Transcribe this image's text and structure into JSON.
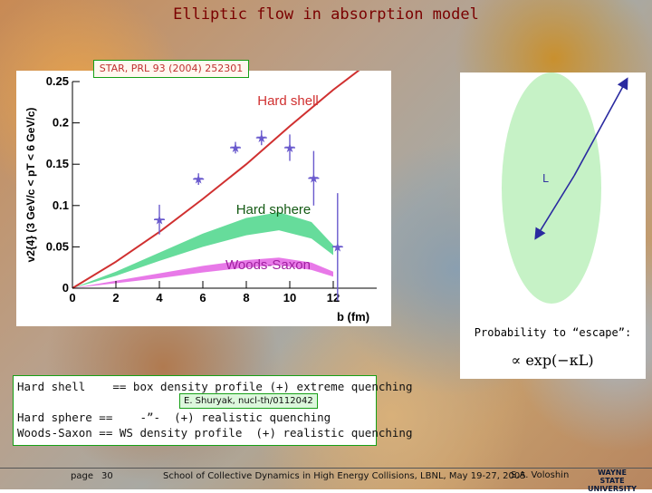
{
  "slide": {
    "title": "Elliptic flow in absorption model",
    "star_ref": "STAR, PRL 93 (2004) 252301"
  },
  "chart_data": {
    "type": "scatter",
    "xlabel": "b (fm)",
    "ylabel": "v2{4} (3 GeV/c < pT < 6 GeV/c)",
    "xlim": [
      0,
      14
    ],
    "ylim": [
      0,
      0.25
    ],
    "x_ticks": [
      "0",
      "2",
      "4",
      "6",
      "8",
      "10",
      "12"
    ],
    "y_ticks": [
      "0",
      "0.05",
      "0.1",
      "0.15",
      "0.2",
      "0.25"
    ],
    "grid": false,
    "points": [
      {
        "x": 4.0,
        "y": 0.083,
        "err": 0.018
      },
      {
        "x": 5.8,
        "y": 0.132,
        "err": 0.007
      },
      {
        "x": 7.5,
        "y": 0.17,
        "err": 0.007
      },
      {
        "x": 8.7,
        "y": 0.182,
        "err": 0.009
      },
      {
        "x": 10.0,
        "y": 0.17,
        "err": 0.016
      },
      {
        "x": 11.1,
        "y": 0.133,
        "err": 0.033
      },
      {
        "x": 12.2,
        "y": 0.05,
        "err": 0.065
      }
    ],
    "curves": [
      {
        "name": "Hard shell",
        "color": "#d03030",
        "kind": "line",
        "x": [
          0,
          2,
          4,
          6,
          8,
          10,
          12,
          13.5
        ],
        "y": [
          0,
          0.032,
          0.068,
          0.108,
          0.15,
          0.196,
          0.24,
          0.27
        ]
      },
      {
        "name": "Hard sphere",
        "color": "#33d07a",
        "kind": "band",
        "x": [
          0,
          2,
          4,
          6,
          8,
          9.5,
          11,
          12
        ],
        "y_low": [
          0,
          0.015,
          0.033,
          0.05,
          0.064,
          0.07,
          0.06,
          0.04
        ],
        "y_high": [
          0,
          0.02,
          0.043,
          0.066,
          0.085,
          0.092,
          0.08,
          0.052
        ]
      },
      {
        "name": "Woods-Saxon",
        "color": "#e04ce0",
        "kind": "band",
        "x": [
          0,
          2,
          4,
          6,
          8,
          9.5,
          11,
          12
        ],
        "y_low": [
          0,
          0.006,
          0.012,
          0.019,
          0.025,
          0.028,
          0.022,
          0.014
        ],
        "y_high": [
          0,
          0.009,
          0.018,
          0.027,
          0.034,
          0.037,
          0.031,
          0.02
        ]
      }
    ],
    "annotations": [
      "Hard shell",
      "Hard sphere",
      "Woods-Saxon"
    ]
  },
  "ellipse": {
    "label": "L",
    "prob_label": "Probability to “escape”:",
    "formula": "∝ exp(−κL)"
  },
  "notes": {
    "line1": "Hard shell    == box density profile (+) extreme quenching",
    "ref": "E. Shuryak, nucl-th/0112042",
    "line2": "Hard sphere ==    -”-  (+) realistic quenching",
    "line3": "Woods-Saxon == WS density profile  (+) realistic quenching"
  },
  "footer": {
    "page_label": "page",
    "page_num": "30",
    "conference": "School of Collective Dynamics in High Energy Collisions, LBNL, May 19-27, 2005",
    "author": "S.A. Voloshin",
    "logo_line1": "WAYNE STATE",
    "logo_line2": "UNIVERSITY"
  },
  "colors": {
    "title": "#7a0000",
    "green_border": "#16a016",
    "hard_shell": "#d03030",
    "hard_sphere": "#33d07a",
    "woods_saxon": "#e04ce0",
    "points": "#6a5acd"
  }
}
